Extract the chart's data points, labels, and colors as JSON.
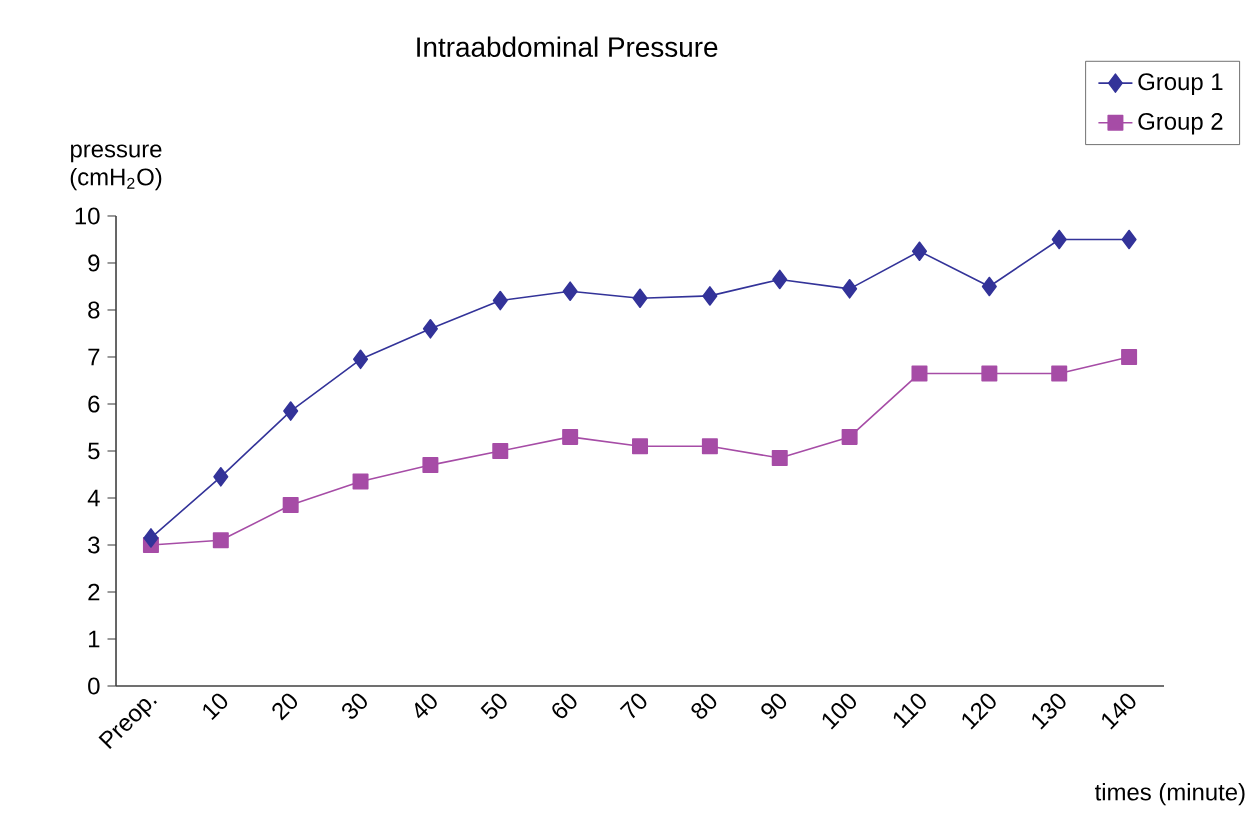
{
  "chart_data": {
    "type": "line",
    "title": "Intraabdominal Pressure",
    "xlabel": "times (minute)",
    "ylabel": "pressure (cmH$_{2}$O)",
    "categories": [
      "Preop.",
      "10",
      "20",
      "30",
      "40",
      "50",
      "60",
      "70",
      "80",
      "90",
      "100",
      "110",
      "120",
      "130",
      "140"
    ],
    "series": [
      {
        "name": "Group 1",
        "color": "#333399",
        "marker": "diamond",
        "values": [
          3.15,
          4.45,
          5.85,
          6.95,
          7.6,
          8.2,
          8.4,
          8.25,
          8.3,
          8.65,
          8.45,
          9.25,
          8.5,
          9.5,
          9.5
        ]
      },
      {
        "name": "Group 2",
        "color": "#a64ca6",
        "marker": "square",
        "values": [
          3.0,
          3.1,
          3.85,
          4.35,
          4.7,
          5.0,
          5.3,
          5.1,
          5.1,
          4.85,
          5.3,
          6.65,
          6.65,
          6.65,
          7.0
        ]
      }
    ],
    "ylim": [
      0,
      10
    ],
    "yticks": [
      0,
      1,
      2,
      3,
      4,
      5,
      6,
      7,
      8,
      9,
      10
    ],
    "grid": false,
    "legend": "top right",
    "line_style": "solid"
  }
}
